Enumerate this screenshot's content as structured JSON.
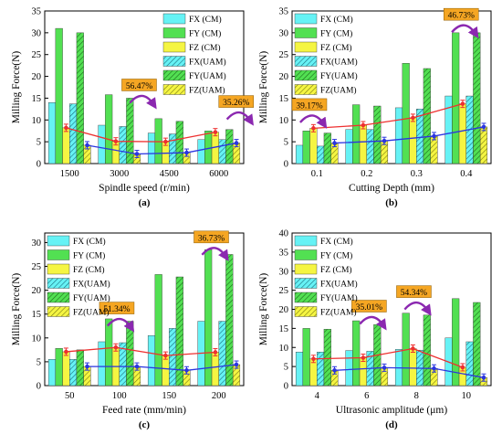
{
  "colors": {
    "fx": "#66f2f5",
    "fy": "#52e052",
    "fz": "#f5f542",
    "cm_line": "#ee3030",
    "uam_line": "#2b35e0",
    "annot_bg": "#f5a623",
    "arrow": "#8b28b0"
  },
  "legend_labels": [
    "FX (CM)",
    "FY (CM)",
    "FZ (CM)",
    "FX(UAM)",
    "FY(UAM)",
    "FZ(UAM)"
  ],
  "chart_data": [
    {
      "type": "bar",
      "panel_label": "(a)",
      "xlabel": "Spindle speed (r/min)",
      "ylabel": "Milling Force(N)",
      "categories": [
        "1500",
        "3000",
        "4500",
        "6000"
      ],
      "ylim": [
        0,
        35
      ],
      "yticks": [
        0,
        5,
        10,
        15,
        20,
        25,
        30,
        35
      ],
      "legend_position": "top-right",
      "series": [
        {
          "name": "FX (CM)",
          "values": [
            14,
            8.8,
            7,
            5.5
          ]
        },
        {
          "name": "FY (CM)",
          "values": [
            31,
            15.8,
            10.3,
            7.5
          ]
        },
        {
          "name": "FZ (CM)",
          "values": [
            8.2,
            5.1,
            5,
            7.2
          ]
        },
        {
          "name": "FX(UAM)",
          "values": [
            13.7,
            8.5,
            6.8,
            5.5
          ]
        },
        {
          "name": "FY(UAM)",
          "values": [
            30,
            15,
            9.7,
            7.8
          ]
        },
        {
          "name": "FZ(UAM)",
          "values": [
            4.2,
            2.2,
            2.5,
            4.7
          ]
        }
      ],
      "annotations": [
        {
          "text": "56.47%",
          "x": 1.55,
          "y": 17.3
        },
        {
          "text": "35.26%",
          "x": 3.5,
          "y": 13.5
        }
      ]
    },
    {
      "type": "bar",
      "panel_label": "(b)",
      "xlabel": "Cutting Depth (mm)",
      "ylabel": "Milling Force(N)",
      "categories": [
        "0.1",
        "0.2",
        "0.3",
        "0.4"
      ],
      "ylim": [
        0,
        35
      ],
      "yticks": [
        0,
        5,
        10,
        15,
        20,
        25,
        30,
        35
      ],
      "legend_position": "top-left",
      "series": [
        {
          "name": "FX (CM)",
          "values": [
            4.2,
            7.8,
            12.8,
            15.5
          ]
        },
        {
          "name": "FY (CM)",
          "values": [
            7.5,
            13.5,
            23,
            30
          ]
        },
        {
          "name": "FZ (CM)",
          "values": [
            8.1,
            8.8,
            10.5,
            13.7
          ]
        },
        {
          "name": "FX(UAM)",
          "values": [
            4,
            7.8,
            12.5,
            15.5
          ]
        },
        {
          "name": "FY(UAM)",
          "values": [
            7,
            13.2,
            21.8,
            30
          ]
        },
        {
          "name": "FZ(UAM)",
          "values": [
            4.7,
            5.2,
            6.3,
            8.4
          ]
        }
      ],
      "annotations": [
        {
          "text": "39.17%",
          "x": 0,
          "y": 12.8
        },
        {
          "text": "46.73%",
          "x": 3.05,
          "y": 33.5
        }
      ]
    },
    {
      "type": "bar",
      "panel_label": "(c)",
      "xlabel": "Feed rate (mm/min)",
      "ylabel": "Milling Force(N)",
      "categories": [
        "50",
        "100",
        "150",
        "200"
      ],
      "ylim": [
        0,
        32
      ],
      "yticks": [
        0,
        5,
        10,
        15,
        20,
        25,
        30
      ],
      "legend_position": "top-left",
      "series": [
        {
          "name": "FX (CM)",
          "values": [
            5.5,
            9.2,
            10.5,
            13.5
          ]
        },
        {
          "name": "FY (CM)",
          "values": [
            7.8,
            14,
            23.3,
            28.5
          ]
        },
        {
          "name": "FZ (CM)",
          "values": [
            7.1,
            8,
            6.3,
            7
          ]
        },
        {
          "name": "FX(UAM)",
          "values": [
            5.5,
            9,
            12,
            13.5
          ]
        },
        {
          "name": "FY(UAM)",
          "values": [
            7.5,
            13.5,
            22.8,
            27.5
          ]
        },
        {
          "name": "FZ(UAM)",
          "values": [
            4,
            4,
            3.2,
            4.4
          ]
        }
      ],
      "annotations": [
        {
          "text": "51.34%",
          "x": 1.1,
          "y": 15.6
        },
        {
          "text": "36.73%",
          "x": 3.0,
          "y": 30.5
        }
      ]
    },
    {
      "type": "bar",
      "panel_label": "(d)",
      "xlabel": "Ultrasonic amplitude (μm)",
      "ylabel": "Milling Force(N)",
      "categories": [
        "4",
        "6",
        "8",
        "10"
      ],
      "ylim": [
        0,
        40
      ],
      "yticks": [
        0,
        5,
        10,
        15,
        20,
        25,
        30,
        35,
        40
      ],
      "legend_position": "top-left",
      "series": [
        {
          "name": "FX (CM)",
          "values": [
            8.8,
            9.2,
            9.5,
            12.5
          ]
        },
        {
          "name": "FY (CM)",
          "values": [
            15,
            17,
            19,
            22.8
          ]
        },
        {
          "name": "FZ (CM)",
          "values": [
            7,
            7.3,
            9.7,
            4.8
          ]
        },
        {
          "name": "FX(UAM)",
          "values": [
            8.8,
            9,
            9.3,
            11.5
          ]
        },
        {
          "name": "FY(UAM)",
          "values": [
            14.8,
            16,
            18.5,
            21.8
          ]
        },
        {
          "name": "FZ(UAM)",
          "values": [
            4,
            4.7,
            4.5,
            2.1
          ]
        }
      ],
      "annotations": [
        {
          "text": "35.01%",
          "x": 1.2,
          "y": 20
        },
        {
          "text": "54.34%",
          "x": 2.1,
          "y": 23.8
        }
      ]
    }
  ]
}
